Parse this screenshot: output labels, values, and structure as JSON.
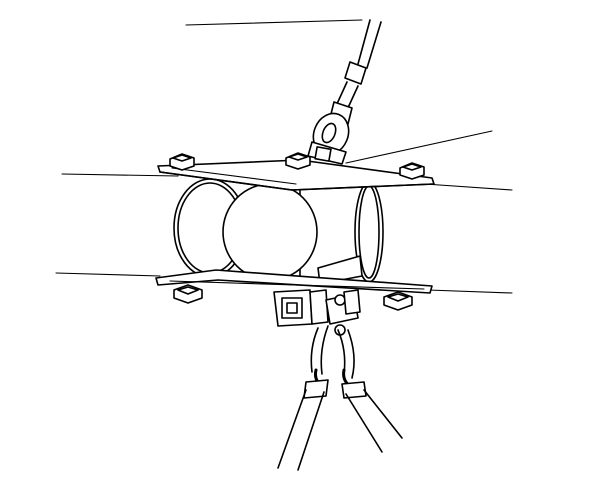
{
  "diagram": {
    "kind": "line-art illustration",
    "colors": {
      "stroke": "#000000",
      "background": "#ffffff"
    },
    "parts": [
      "upper-cable",
      "eye-bolt",
      "upper-clamp-plate",
      "lower-clamp-plate",
      "pipes",
      "bracket",
      "lower-hangers"
    ]
  }
}
